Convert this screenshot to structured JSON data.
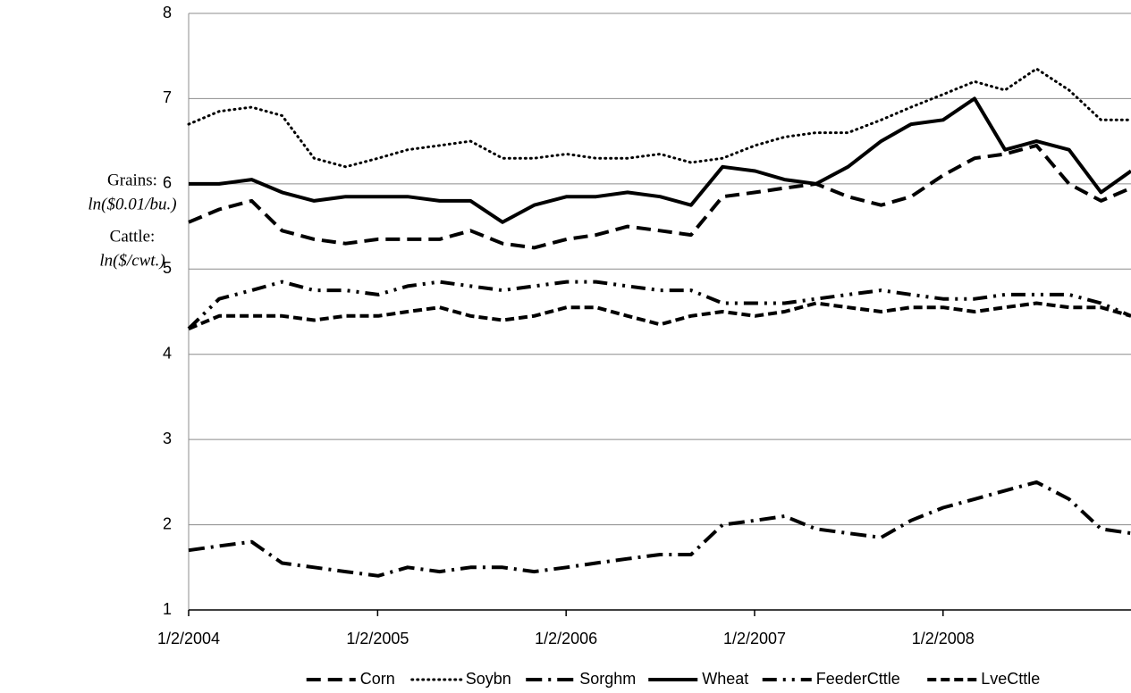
{
  "chart_data": {
    "type": "line",
    "y_label": [
      "Grains:",
      "ln($0.01/bu.)",
      "Cattle:",
      "ln($/cwt.)"
    ],
    "x": [
      "1/2/2004",
      "3/1/2004",
      "5/3/2004",
      "7/1/2004",
      "9/1/2004",
      "11/1/2004",
      "1/3/2005",
      "3/1/2005",
      "5/2/2005",
      "7/1/2005",
      "9/1/2005",
      "11/1/2005",
      "1/3/2006",
      "3/1/2006",
      "5/1/2006",
      "7/3/2006",
      "9/1/2006",
      "11/1/2006",
      "1/3/2007",
      "3/1/2007",
      "5/1/2007",
      "7/2/2007",
      "9/4/2007",
      "11/1/2007",
      "1/2/2008",
      "3/3/2008",
      "5/1/2008",
      "7/1/2008",
      "9/2/2008",
      "11/3/2008",
      "12/31/2008"
    ],
    "xlim": [
      "1/2/2004",
      "12/31/2008"
    ],
    "xticks": [
      "1/2/2004",
      "1/2/2005",
      "1/2/2006",
      "1/2/2007",
      "1/2/2008"
    ],
    "ylim": [
      1,
      8
    ],
    "yticks": [
      1,
      2,
      3,
      4,
      5,
      6,
      7,
      8
    ],
    "grid": true,
    "legend": "bottom",
    "series": [
      {
        "name": "Corn",
        "color": "#000000",
        "dash": "16 8",
        "values": [
          5.55,
          5.7,
          5.8,
          5.45,
          5.35,
          5.3,
          5.35,
          5.35,
          5.35,
          5.45,
          5.3,
          5.25,
          5.35,
          5.4,
          5.5,
          5.45,
          5.4,
          5.85,
          5.9,
          5.95,
          6.0,
          5.85,
          5.75,
          5.85,
          6.1,
          6.3,
          6.35,
          6.45,
          6.0,
          5.8,
          5.95
        ]
      },
      {
        "name": "Soybn",
        "color": "#000000",
        "dash": "1 5",
        "values": [
          6.7,
          6.85,
          6.9,
          6.8,
          6.3,
          6.2,
          6.3,
          6.4,
          6.45,
          6.5,
          6.3,
          6.3,
          6.35,
          6.3,
          6.3,
          6.35,
          6.25,
          6.3,
          6.45,
          6.55,
          6.6,
          6.6,
          6.75,
          6.9,
          7.05,
          7.2,
          7.1,
          7.35,
          7.1,
          6.75,
          6.75
        ]
      },
      {
        "name": "Sorghm",
        "color": "#000000",
        "dash": "18 7 3 7",
        "values": [
          1.7,
          1.75,
          1.8,
          1.55,
          1.5,
          1.45,
          1.4,
          1.5,
          1.45,
          1.5,
          1.5,
          1.45,
          1.5,
          1.55,
          1.6,
          1.65,
          1.65,
          2.0,
          2.05,
          2.1,
          1.95,
          1.9,
          1.85,
          2.05,
          2.2,
          2.3,
          2.4,
          2.5,
          2.3,
          1.95,
          1.9
        ]
      },
      {
        "name": "Wheat",
        "color": "#000000",
        "dash": "none",
        "values": [
          6.0,
          6.0,
          6.05,
          5.9,
          5.8,
          5.85,
          5.85,
          5.85,
          5.8,
          5.8,
          5.55,
          5.75,
          5.85,
          5.85,
          5.9,
          5.85,
          5.75,
          6.2,
          6.15,
          6.05,
          6.0,
          6.2,
          6.5,
          6.7,
          6.75,
          7.0,
          6.4,
          6.5,
          6.4,
          5.9,
          6.15
        ]
      },
      {
        "name": "FeederCttle",
        "color": "#000000",
        "dash": "16 7 3 7 3 7",
        "values": [
          4.3,
          4.65,
          4.75,
          4.85,
          4.75,
          4.75,
          4.7,
          4.8,
          4.85,
          4.8,
          4.75,
          4.8,
          4.85,
          4.85,
          4.8,
          4.75,
          4.75,
          4.6,
          4.6,
          4.6,
          4.65,
          4.7,
          4.75,
          4.7,
          4.65,
          4.65,
          4.7,
          4.7,
          4.7,
          4.6,
          4.45
        ]
      },
      {
        "name": "LveCttle",
        "color": "#000000",
        "dash": "10 5",
        "values": [
          4.3,
          4.45,
          4.45,
          4.45,
          4.4,
          4.45,
          4.45,
          4.5,
          4.55,
          4.45,
          4.4,
          4.45,
          4.55,
          4.55,
          4.45,
          4.35,
          4.45,
          4.5,
          4.45,
          4.5,
          4.6,
          4.55,
          4.5,
          4.55,
          4.55,
          4.5,
          4.55,
          4.6,
          4.55,
          4.55,
          4.45
        ]
      }
    ]
  }
}
